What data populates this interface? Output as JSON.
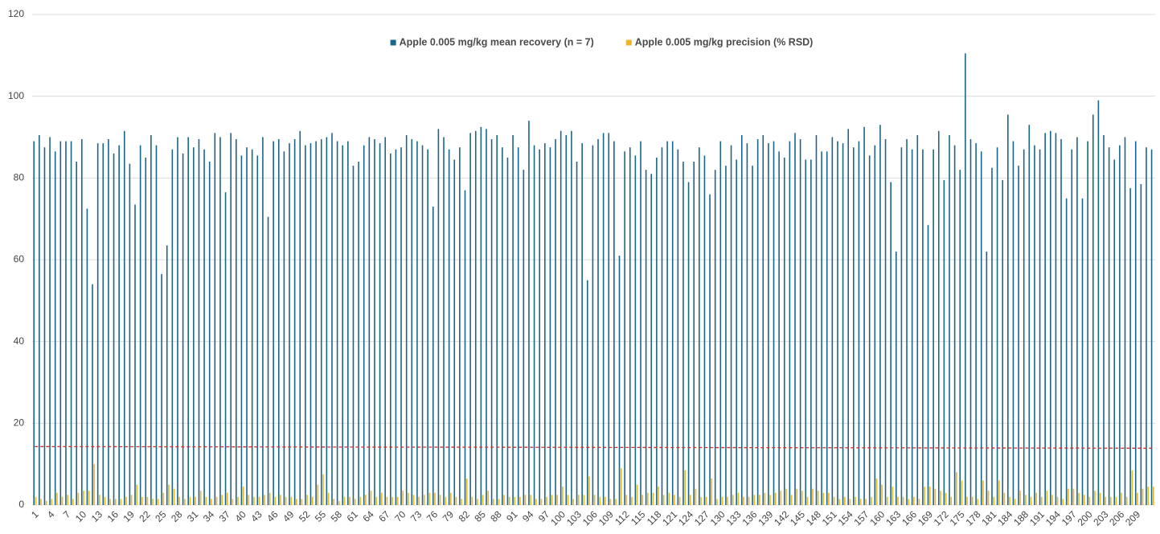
{
  "chart_data": {
    "type": "bar",
    "categories": [
      1,
      null,
      null,
      4,
      null,
      null,
      7,
      null,
      null,
      10,
      null,
      null,
      13,
      null,
      null,
      16,
      null,
      null,
      19,
      null,
      null,
      22,
      null,
      null,
      25,
      null,
      null,
      28,
      null,
      null,
      31,
      null,
      null,
      34,
      null,
      null,
      37,
      null,
      null,
      40,
      null,
      null,
      43,
      null,
      null,
      46,
      null,
      null,
      49,
      null,
      null,
      52,
      null,
      null,
      55,
      null,
      null,
      58,
      null,
      null,
      61,
      null,
      null,
      64,
      null,
      null,
      67,
      null,
      null,
      70,
      null,
      null,
      73,
      null,
      null,
      76,
      null,
      null,
      79,
      null,
      null,
      82,
      null,
      null,
      85,
      null,
      null,
      88,
      null,
      null,
      91,
      null,
      null,
      94,
      null,
      null,
      97,
      null,
      null,
      100,
      null,
      null,
      103,
      null,
      null,
      106,
      null,
      null,
      109,
      null,
      null,
      112,
      null,
      null,
      115,
      null,
      null,
      118,
      null,
      null,
      121,
      null,
      null,
      124,
      null,
      null,
      127,
      null,
      null,
      130,
      null,
      null,
      133,
      null,
      null,
      136,
      null,
      null,
      139,
      null,
      null,
      142,
      null,
      null,
      145,
      null,
      null,
      148,
      null,
      null,
      151,
      null,
      null,
      154,
      null,
      null,
      157,
      null,
      null,
      160,
      null,
      null,
      163,
      null,
      null,
      166,
      null,
      null,
      169,
      null,
      null,
      172,
      null,
      null,
      175,
      null,
      null,
      178,
      null,
      null,
      181,
      null,
      null,
      184,
      null,
      null,
      188,
      null,
      null,
      191,
      null,
      null,
      194,
      null,
      null,
      197,
      null,
      null,
      200,
      null,
      null,
      203,
      null,
      null,
      206,
      null,
      null,
      209,
      null,
      null,
      null
    ],
    "series": [
      {
        "name": "Apple 0.005 mg/kg mean recovery (n = 7)",
        "color": "#1b6688",
        "values": [
          89,
          90.5,
          87.5,
          90,
          86.5,
          89,
          89,
          89,
          84,
          89.5,
          72.5,
          54,
          88.5,
          88.5,
          89.5,
          86,
          88,
          91.5,
          83.5,
          73.5,
          88,
          85,
          90.5,
          88,
          56.5,
          63.5,
          87,
          90,
          86,
          90,
          87.5,
          89.5,
          87,
          84,
          91,
          90,
          76.5,
          91,
          89.5,
          85.5,
          87.5,
          87,
          85.5,
          90,
          70.5,
          89,
          89.5,
          86.5,
          88.5,
          89.5,
          91.5,
          88,
          88.5,
          89,
          89.5,
          90,
          91,
          89,
          88,
          89,
          83,
          84,
          88,
          90,
          89.5,
          88.5,
          90,
          86,
          87,
          87.5,
          90.5,
          89.5,
          89,
          88,
          87,
          73,
          92,
          90,
          87,
          84.5,
          87.5,
          77,
          91,
          91.5,
          92.5,
          92,
          89.5,
          90.5,
          87.5,
          85,
          90.5,
          87.5,
          82,
          94,
          88,
          87,
          88.5,
          87.5,
          89.5,
          91.5,
          90.5,
          91.5,
          84,
          88.5,
          55,
          88,
          89.5,
          91,
          91,
          89,
          61,
          86.5,
          87.5,
          85.5,
          89,
          82,
          81,
          85,
          87.5,
          89,
          89,
          87,
          84,
          79,
          84,
          87.5,
          85.5,
          76,
          82,
          89,
          83,
          88,
          84.5,
          90.5,
          88.5,
          83,
          89.5,
          90.5,
          88.5,
          89,
          86.5,
          85,
          89,
          91,
          89.5,
          84.5,
          84.5,
          90.5,
          86.5,
          86.5,
          90,
          89,
          88.5,
          92,
          87.5,
          89,
          92.5,
          85.5,
          88,
          93,
          89.5,
          79,
          62,
          87.5,
          89.5,
          87,
          90.5,
          87,
          68.5,
          87,
          91.5,
          79.5,
          90.5,
          88,
          82,
          110.5,
          89.5,
          88.5,
          86.5,
          62,
          82.5,
          87.5,
          79.5,
          95.5,
          89,
          83,
          87,
          93,
          88,
          87,
          91,
          91.5,
          91,
          89.5,
          75,
          87,
          90,
          75,
          89,
          95.5,
          99,
          90.5,
          87.5,
          84.5,
          88,
          90,
          77.5,
          89,
          78.5,
          87.5,
          87
        ]
      },
      {
        "name": "Apple 0.005 mg/kg precision (% RSD)",
        "color": "#f2b420",
        "values": [
          2,
          1.5,
          1,
          1.5,
          3,
          2,
          2.5,
          1.5,
          3,
          3.5,
          3.5,
          10,
          2.5,
          2,
          1.5,
          1.5,
          1.5,
          2,
          2.5,
          5,
          2,
          2,
          1.5,
          1.5,
          3,
          5,
          4,
          2,
          1.5,
          2,
          2,
          3.5,
          2,
          1.5,
          2,
          2.5,
          3,
          1.5,
          2,
          4.5,
          2.5,
          2,
          2,
          2.5,
          3,
          2,
          2.5,
          2,
          2,
          1.5,
          1.5,
          2.5,
          2,
          5,
          7.5,
          3,
          1.5,
          1,
          2,
          2,
          1.5,
          2,
          2.5,
          3.5,
          2,
          3,
          2,
          2,
          2,
          3.5,
          3,
          2.5,
          2,
          2.5,
          3,
          3,
          2.5,
          2,
          3,
          2,
          1.5,
          6.5,
          2,
          1.5,
          2.5,
          3.5,
          1.5,
          1.5,
          2.5,
          2,
          2,
          2,
          2.5,
          2.5,
          1.5,
          1.5,
          2,
          2.5,
          2.5,
          4.5,
          2.5,
          1.5,
          2.5,
          2.5,
          7,
          2.5,
          2,
          2,
          1.5,
          1.5,
          9,
          2.5,
          2,
          5,
          2.5,
          3,
          3,
          4.5,
          2.5,
          3,
          2.5,
          2,
          8.5,
          2.5,
          4,
          2,
          2,
          6.5,
          1.5,
          2,
          2,
          2.5,
          3,
          2,
          2,
          2.5,
          2.5,
          3,
          2.5,
          3,
          3.5,
          4,
          2.5,
          4,
          3.5,
          2,
          4,
          3.5,
          3,
          3,
          2,
          1.5,
          2,
          1.5,
          2,
          1.5,
          1.5,
          2,
          6.5,
          5,
          2,
          4.5,
          2,
          2,
          1.5,
          2,
          1.5,
          4.5,
          4.5,
          4,
          3.5,
          3,
          2,
          8,
          6,
          2,
          2,
          1.5,
          6,
          3.5,
          2,
          6,
          3,
          2,
          1.5,
          3.5,
          2.5,
          2,
          3,
          2,
          3.5,
          2.5,
          2,
          1.5,
          4,
          4,
          3,
          2.5,
          2,
          3.5,
          3,
          2,
          2,
          2,
          3,
          2,
          8.5,
          3,
          4,
          4.5,
          4.5
        ]
      }
    ],
    "trendline": {
      "color": "#d0312d",
      "values": [
        14.3,
        13.9
      ]
    },
    "ylim": [
      0,
      120
    ],
    "yticks": [
      0,
      20,
      40,
      60,
      80,
      100,
      120
    ],
    "grid": true,
    "legend": "top"
  }
}
